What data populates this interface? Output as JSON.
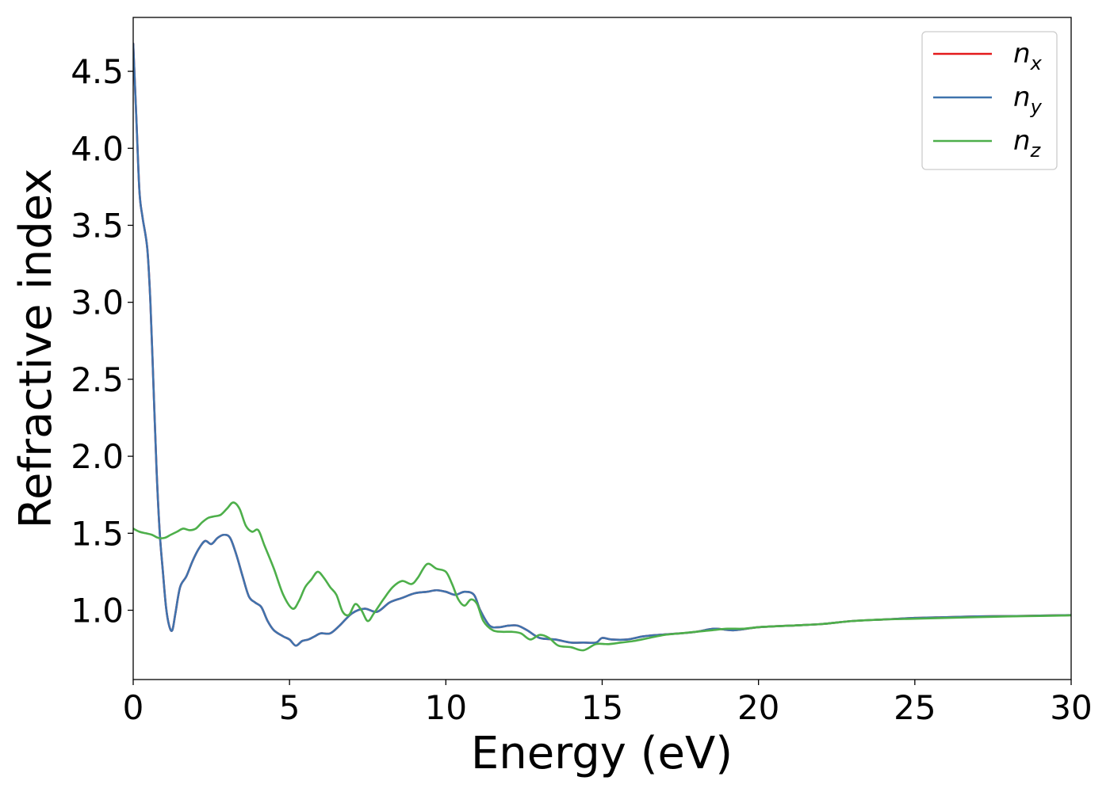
{
  "chart_data": {
    "type": "line",
    "title": "",
    "xlabel": "Energy (eV)",
    "ylabel": "Refractive index",
    "xlim": [
      0,
      30
    ],
    "ylim": [
      0.55,
      4.85
    ],
    "xticks": [
      0,
      5,
      10,
      15,
      20,
      25,
      30
    ],
    "xtick_labels": [
      "0",
      "5",
      "10",
      "15",
      "20",
      "25",
      "30"
    ],
    "yticks": [
      1.0,
      1.5,
      2.0,
      2.5,
      3.0,
      3.5,
      4.0,
      4.5
    ],
    "ytick_labels": [
      "1.0",
      "1.5",
      "2.0",
      "2.5",
      "3.0",
      "3.5",
      "4.0",
      "4.5"
    ],
    "grid": false,
    "legend_position": "top-right",
    "series": [
      {
        "name": "n",
        "subscript": "x",
        "color": "#e41a1c",
        "x": [
          0,
          0.1,
          0.2,
          0.3,
          0.45,
          0.55,
          0.65,
          0.75,
          0.85,
          0.95,
          1.05,
          1.15,
          1.25,
          1.35,
          1.5,
          1.7,
          1.9,
          2.1,
          2.3,
          2.5,
          2.7,
          2.9,
          3.1,
          3.3,
          3.5,
          3.7,
          3.9,
          4.1,
          4.3,
          4.5,
          4.8,
          5.0,
          5.2,
          5.4,
          5.6,
          5.8,
          6.0,
          6.3,
          6.6,
          7.0,
          7.4,
          7.8,
          8.2,
          8.6,
          9.0,
          9.4,
          9.7,
          10.0,
          10.3,
          10.6,
          10.9,
          11.1,
          11.4,
          11.7,
          12.0,
          12.3,
          12.6,
          13.0,
          13.5,
          14.0,
          14.4,
          14.8,
          15.0,
          15.3,
          15.8,
          16.3,
          16.8,
          17.5,
          18.0,
          18.6,
          19.2,
          20.0,
          21.0,
          22.0,
          23.0,
          24.0,
          25.0,
          26.0,
          27.0,
          28.0,
          29.0,
          30.0
        ],
        "y": [
          4.68,
          4.2,
          3.72,
          3.55,
          3.35,
          3.0,
          2.45,
          1.9,
          1.5,
          1.25,
          1.02,
          0.9,
          0.87,
          0.98,
          1.15,
          1.22,
          1.32,
          1.4,
          1.45,
          1.43,
          1.47,
          1.49,
          1.47,
          1.36,
          1.22,
          1.09,
          1.05,
          1.02,
          0.93,
          0.87,
          0.83,
          0.81,
          0.77,
          0.8,
          0.81,
          0.83,
          0.85,
          0.85,
          0.9,
          0.98,
          1.01,
          0.99,
          1.05,
          1.08,
          1.11,
          1.12,
          1.13,
          1.12,
          1.1,
          1.12,
          1.1,
          1.0,
          0.9,
          0.89,
          0.9,
          0.9,
          0.87,
          0.82,
          0.81,
          0.79,
          0.79,
          0.79,
          0.82,
          0.81,
          0.81,
          0.83,
          0.84,
          0.85,
          0.86,
          0.88,
          0.87,
          0.89,
          0.9,
          0.91,
          0.93,
          0.94,
          0.95,
          0.955,
          0.96,
          0.962,
          0.965,
          0.968
        ]
      },
      {
        "name": "n",
        "subscript": "y",
        "color": "#3f73ad",
        "x": [
          0,
          0.1,
          0.2,
          0.3,
          0.45,
          0.55,
          0.65,
          0.75,
          0.85,
          0.95,
          1.05,
          1.15,
          1.25,
          1.35,
          1.5,
          1.7,
          1.9,
          2.1,
          2.3,
          2.5,
          2.7,
          2.9,
          3.1,
          3.3,
          3.5,
          3.7,
          3.9,
          4.1,
          4.3,
          4.5,
          4.8,
          5.0,
          5.2,
          5.4,
          5.6,
          5.8,
          6.0,
          6.3,
          6.6,
          7.0,
          7.4,
          7.8,
          8.2,
          8.6,
          9.0,
          9.4,
          9.7,
          10.0,
          10.3,
          10.6,
          10.9,
          11.1,
          11.4,
          11.7,
          12.0,
          12.3,
          12.6,
          13.0,
          13.5,
          14.0,
          14.4,
          14.8,
          15.0,
          15.3,
          15.8,
          16.3,
          16.8,
          17.5,
          18.0,
          18.6,
          19.2,
          20.0,
          21.0,
          22.0,
          23.0,
          24.0,
          25.0,
          26.0,
          27.0,
          28.0,
          29.0,
          30.0
        ],
        "y": [
          4.68,
          4.2,
          3.72,
          3.55,
          3.35,
          3.0,
          2.45,
          1.9,
          1.5,
          1.25,
          1.02,
          0.9,
          0.87,
          0.98,
          1.15,
          1.22,
          1.32,
          1.4,
          1.45,
          1.43,
          1.47,
          1.49,
          1.47,
          1.36,
          1.22,
          1.09,
          1.05,
          1.02,
          0.93,
          0.87,
          0.83,
          0.81,
          0.77,
          0.8,
          0.81,
          0.83,
          0.85,
          0.85,
          0.9,
          0.98,
          1.01,
          0.99,
          1.05,
          1.08,
          1.11,
          1.12,
          1.13,
          1.12,
          1.1,
          1.12,
          1.1,
          1.0,
          0.9,
          0.89,
          0.9,
          0.9,
          0.87,
          0.82,
          0.81,
          0.79,
          0.79,
          0.79,
          0.82,
          0.81,
          0.81,
          0.83,
          0.84,
          0.85,
          0.86,
          0.88,
          0.87,
          0.89,
          0.9,
          0.91,
          0.93,
          0.94,
          0.95,
          0.955,
          0.96,
          0.962,
          0.965,
          0.968
        ]
      },
      {
        "name": "n",
        "subscript": "z",
        "color": "#4daf4a",
        "x": [
          0,
          0.2,
          0.4,
          0.6,
          0.8,
          1.0,
          1.2,
          1.4,
          1.6,
          1.8,
          2.0,
          2.2,
          2.4,
          2.6,
          2.8,
          3.0,
          3.2,
          3.4,
          3.6,
          3.8,
          4.0,
          4.2,
          4.5,
          4.8,
          5.1,
          5.3,
          5.5,
          5.7,
          5.9,
          6.1,
          6.3,
          6.5,
          6.7,
          6.9,
          7.1,
          7.3,
          7.5,
          7.7,
          8.0,
          8.3,
          8.6,
          8.9,
          9.1,
          9.4,
          9.7,
          10.0,
          10.2,
          10.4,
          10.6,
          10.8,
          11.0,
          11.2,
          11.5,
          11.8,
          12.1,
          12.4,
          12.7,
          13.0,
          13.3,
          13.6,
          14.0,
          14.4,
          14.8,
          15.2,
          15.6,
          16.0,
          16.5,
          17.0,
          17.5,
          18.0,
          18.5,
          19.0,
          19.5,
          20.0,
          21.0,
          22.0,
          23.0,
          24.0,
          25.0,
          26.0,
          27.0,
          28.0,
          29.0,
          30.0
        ],
        "y": [
          1.53,
          1.51,
          1.5,
          1.49,
          1.47,
          1.47,
          1.49,
          1.51,
          1.53,
          1.52,
          1.53,
          1.57,
          1.6,
          1.61,
          1.62,
          1.66,
          1.7,
          1.66,
          1.55,
          1.51,
          1.52,
          1.42,
          1.27,
          1.1,
          1.01,
          1.06,
          1.15,
          1.2,
          1.25,
          1.21,
          1.15,
          1.1,
          0.99,
          0.97,
          1.04,
          1.0,
          0.93,
          0.98,
          1.07,
          1.15,
          1.19,
          1.17,
          1.21,
          1.3,
          1.27,
          1.25,
          1.17,
          1.07,
          1.03,
          1.07,
          1.04,
          0.93,
          0.87,
          0.86,
          0.86,
          0.85,
          0.81,
          0.84,
          0.82,
          0.77,
          0.76,
          0.74,
          0.78,
          0.78,
          0.79,
          0.8,
          0.82,
          0.84,
          0.85,
          0.86,
          0.87,
          0.88,
          0.88,
          0.89,
          0.9,
          0.91,
          0.93,
          0.94,
          0.945,
          0.95,
          0.955,
          0.96,
          0.963,
          0.967
        ]
      }
    ]
  }
}
